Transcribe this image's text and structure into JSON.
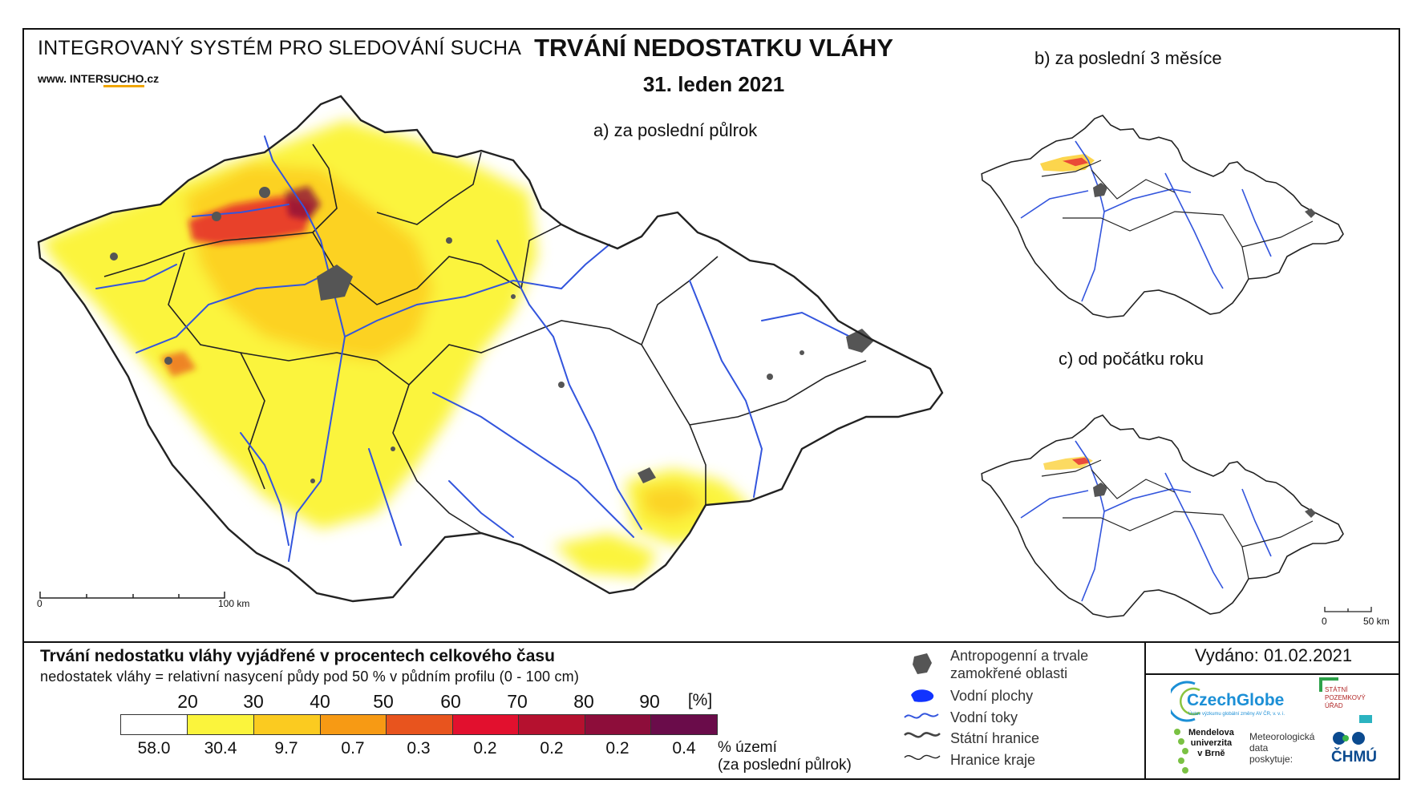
{
  "header": {
    "system_title": "INTEGROVANÝ SYSTÉM PRO SLEDOVÁNÍ SUCHA",
    "website_prefix": "www. INTER",
    "website_brand": "SUCHO",
    "website_suffix": ".cz",
    "main_title": "TRVÁNÍ NEDOSTATKU VLÁHY",
    "date": "31. leden 2021"
  },
  "maps": {
    "a_label": "a) za poslední půlrok",
    "b_label": "b) za poslední 3 měsíce",
    "c_label": "c) od počátku roku",
    "scale_main": {
      "start": "0",
      "end": "100 km"
    },
    "scale_small": {
      "start": "0",
      "end": "50 km"
    }
  },
  "legend": {
    "title": "Trvání nedostatku vláhy vyjádřené v procentech celkového času",
    "subtitle": "nedostatek vláhy = relativní nasycení půdy pod 50 % v půdním profilu (0 - 100 cm)",
    "ticks": [
      "20",
      "30",
      "40",
      "50",
      "60",
      "70",
      "80",
      "90"
    ],
    "unit": "[%]",
    "classes": [
      {
        "color": "#ffffff",
        "share": "58.0"
      },
      {
        "color": "#fbf43c",
        "share": "30.4"
      },
      {
        "color": "#fbcb20",
        "share": "9.7"
      },
      {
        "color": "#f79a14",
        "share": "0.7"
      },
      {
        "color": "#e8541e",
        "share": "0.3"
      },
      {
        "color": "#e2102e",
        "share": "0.2"
      },
      {
        "color": "#b5112f",
        "share": "0.2"
      },
      {
        "color": "#8d0d3a",
        "share": "0.2"
      },
      {
        "color": "#6a0c4a",
        "share": "0.4"
      }
    ],
    "share_caption_1": "% území",
    "share_caption_2": "(za poslední půlrok)"
  },
  "map_legend": {
    "urban_1": "Antropogenní a trvale",
    "urban_2": "zamokřené oblasti",
    "water_bodies": "Vodní plochy",
    "rivers": "Vodní toky",
    "state_border": "Státní hranice",
    "region_border": "Hranice kraje"
  },
  "issued": "Vydáno: 01.02.2021",
  "logos": {
    "czechglobe": "CzechGlobe",
    "czechglobe_tagline": "Ústav výzkumu globální změny AV ČR, v. v. i.",
    "spu_1": "STÁTNÍ",
    "spu_2": "POZEMKOVÝ",
    "spu_3": "ÚŘAD",
    "mendel_1": "Mendelova",
    "mendel_2": "univerzita",
    "mendel_3": "v Brně",
    "meteo_1": "Meteorologická",
    "meteo_2": "data",
    "meteo_3": "poskytuje:",
    "chmu": "ČHMÚ"
  },
  "colors": {
    "river": "#3355dd",
    "urban": "#555555",
    "yellow": "#fbf43c",
    "amber": "#fbcb20",
    "dark_red": "#8d0d3a"
  }
}
